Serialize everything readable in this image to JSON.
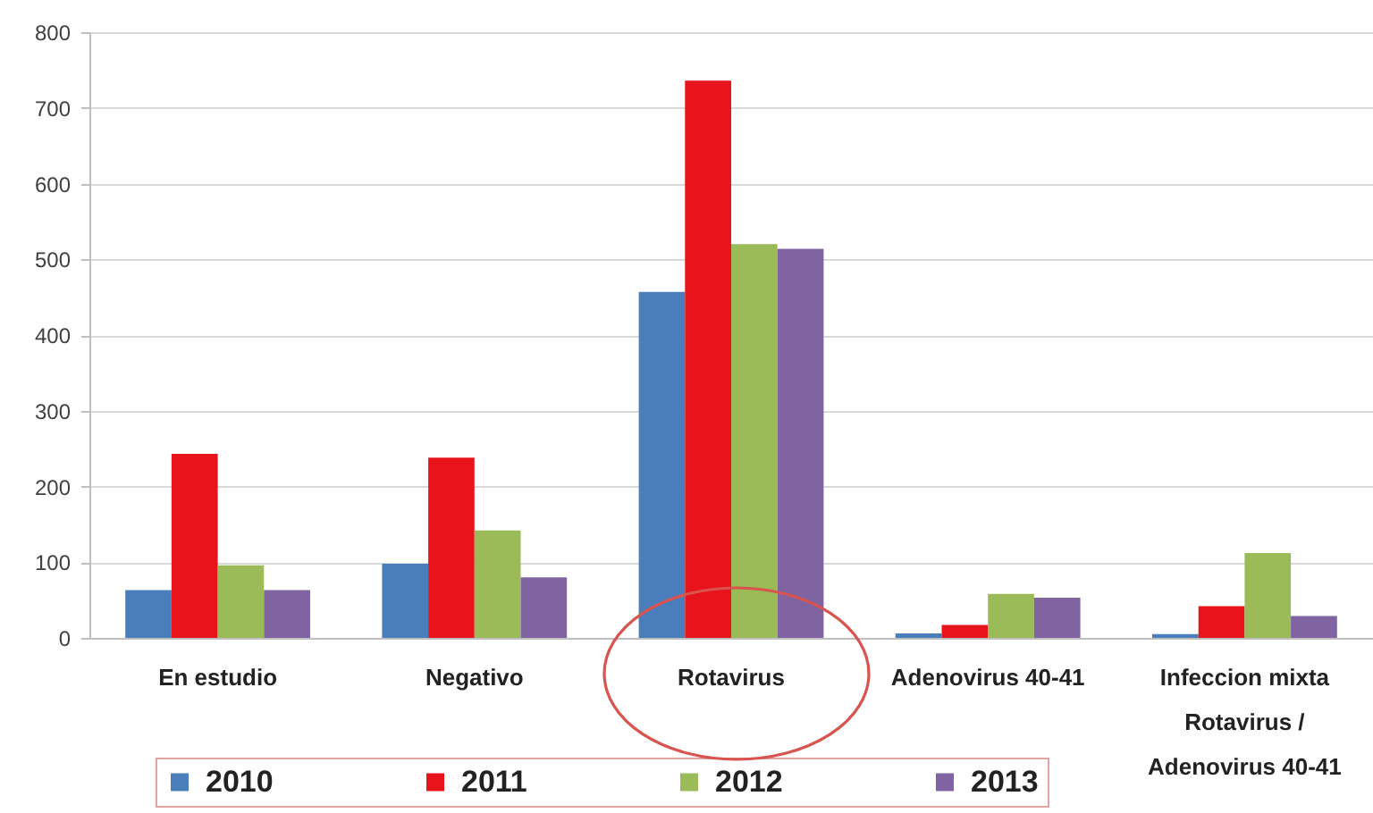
{
  "chart_data": {
    "type": "bar",
    "categories": [
      "En estudio",
      "Negativo",
      "Rotavirus",
      "Adenovirus 40-41",
      "Infeccion mixta Rotavirus / Adenovirus 40-41"
    ],
    "series": [
      {
        "name": "2010",
        "color": "#4a7ebb",
        "values": [
          63,
          98,
          457,
          6,
          5
        ]
      },
      {
        "name": "2011",
        "color": "#e8141c",
        "values": [
          243,
          238,
          736,
          17,
          42
        ]
      },
      {
        "name": "2012",
        "color": "#9bbb59",
        "values": [
          96,
          142,
          520,
          58,
          112
        ]
      },
      {
        "name": "2013",
        "color": "#8064a2",
        "values": [
          63,
          80,
          514,
          53,
          29
        ]
      }
    ],
    "ylim": [
      0,
      800
    ],
    "yticks": [
      0,
      100,
      200,
      300,
      400,
      500,
      600,
      700,
      800
    ],
    "grid": true,
    "legend": "bottom"
  }
}
